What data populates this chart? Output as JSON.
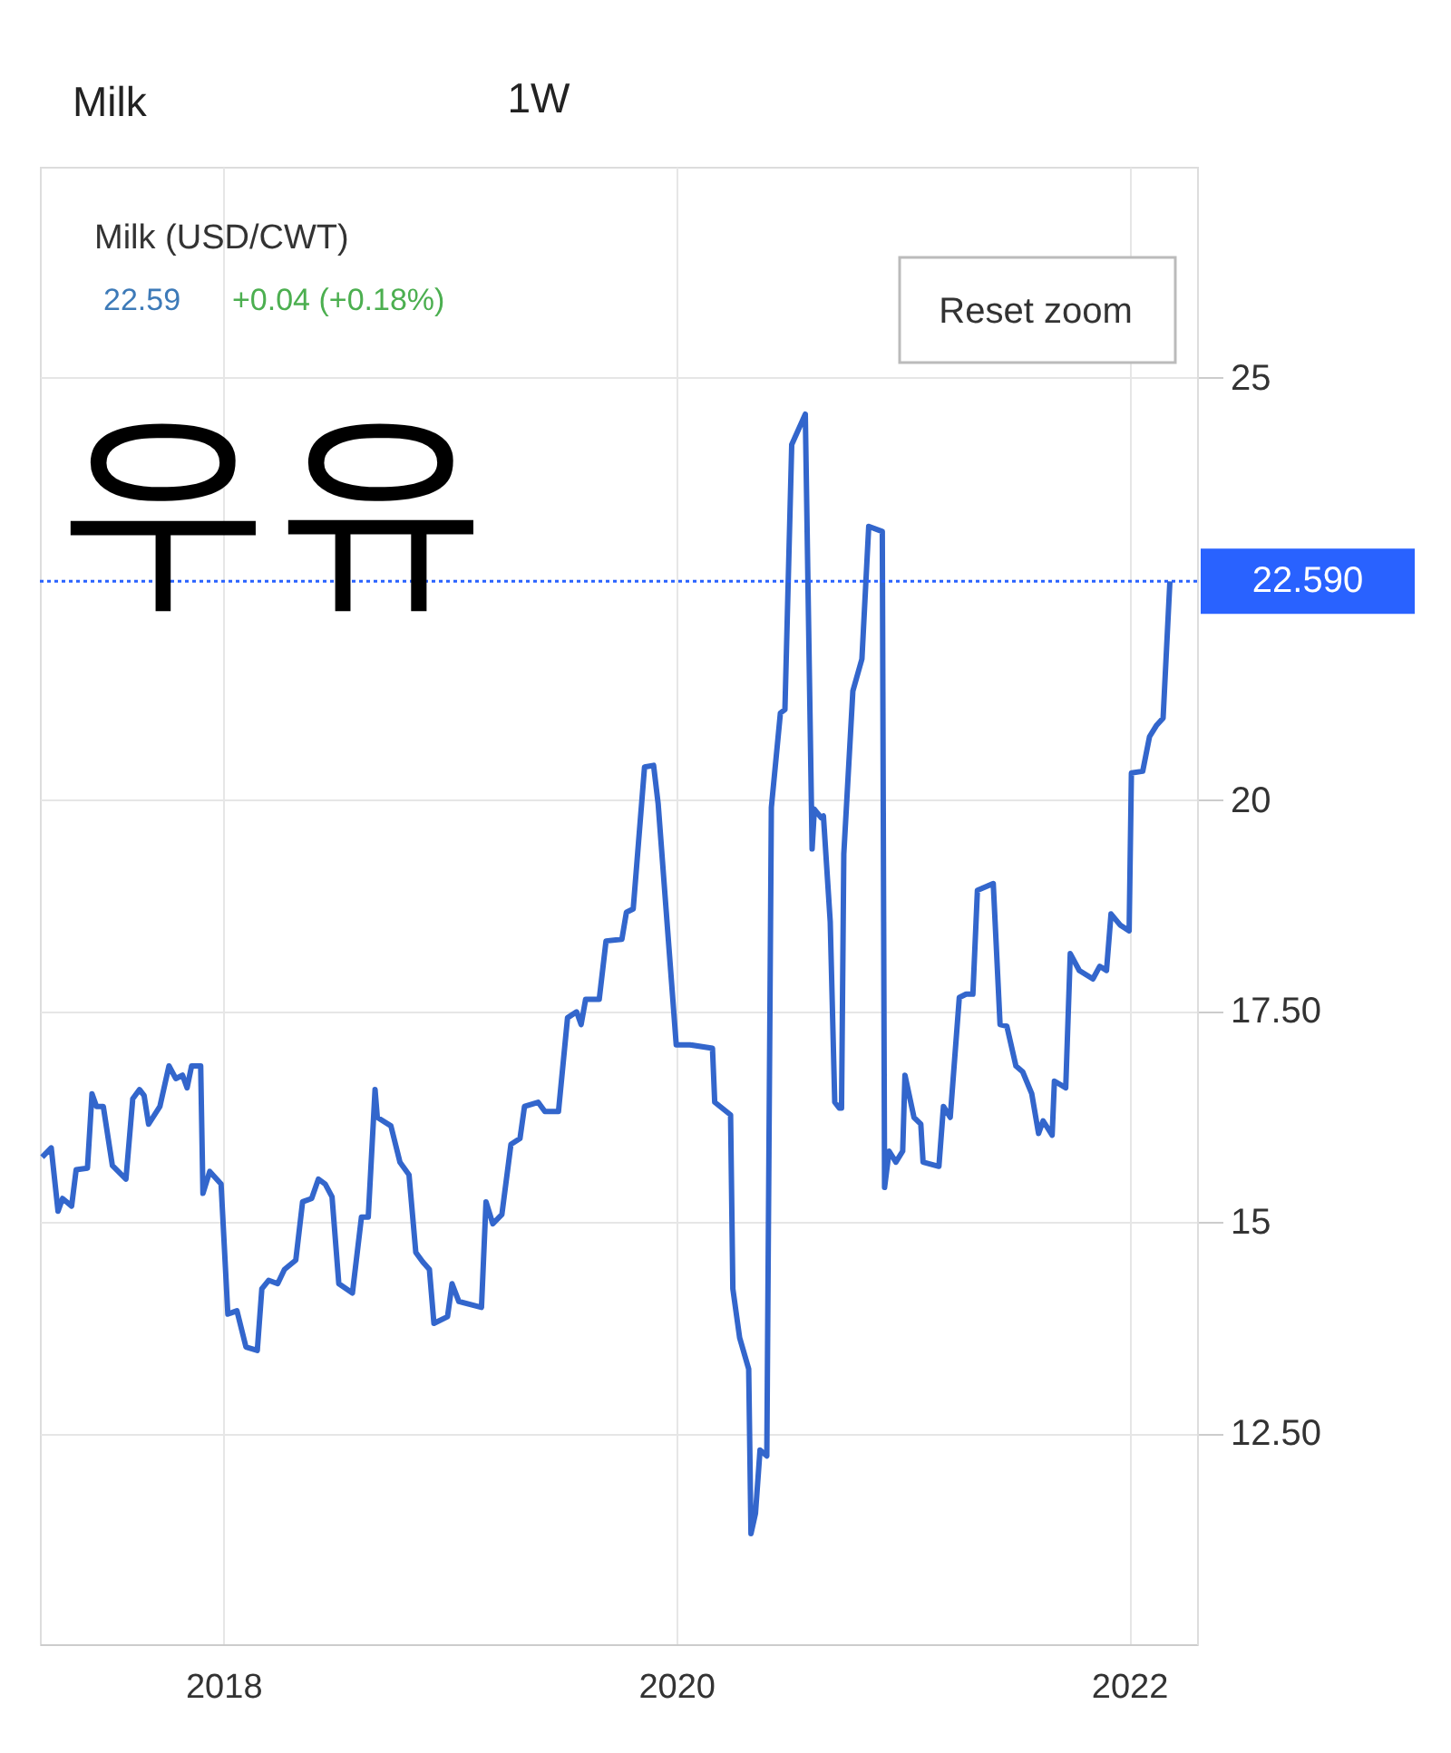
{
  "chart_data": {
    "type": "line",
    "title": "Milk (USD/CWT)",
    "annotations": [
      "22.59",
      "+0.04 (+0.18%)",
      "우유",
      "Milk",
      "1W",
      "Reset zoom"
    ],
    "x": [
      2017.2,
      2017.24,
      2017.27,
      2017.29,
      2017.33,
      2017.35,
      2017.4,
      2017.42,
      2017.44,
      2017.47,
      2017.51,
      2017.57,
      2017.6,
      2017.63,
      2017.65,
      2017.67,
      2017.72,
      2017.76,
      2017.79,
      2017.82,
      2017.84,
      2017.86,
      2017.9,
      2017.91,
      2017.94,
      2017.99,
      2018.02,
      2018.06,
      2018.1,
      2018.15,
      2018.17,
      2018.2,
      2018.24,
      2018.27,
      2018.32,
      2018.35,
      2018.39,
      2018.42,
      2018.45,
      2018.48,
      2018.51,
      2018.57,
      2018.61,
      2018.64,
      2018.67,
      2018.68,
      2018.74,
      2018.78,
      2018.82,
      2018.85,
      2018.88,
      2018.91,
      2018.93,
      2018.99,
      2019.01,
      2019.04,
      2019.14,
      2019.16,
      2019.19,
      2019.23,
      2019.27,
      2019.31,
      2019.33,
      2019.39,
      2019.42,
      2019.48,
      2019.52,
      2019.56,
      2019.58,
      2019.6,
      2019.66,
      2019.69,
      2019.76,
      2019.78,
      2019.81,
      2019.86,
      2019.9,
      2019.92,
      2020.0,
      2020.06,
      2020.16,
      2020.17,
      2020.24,
      2020.25,
      2020.28,
      2020.32,
      2020.33,
      2020.35,
      2020.37,
      2020.4,
      2020.42,
      2020.46,
      2020.48,
      2020.51,
      2020.57,
      2020.6,
      2020.61,
      2020.64,
      2020.65,
      2020.68,
      2020.7,
      2020.72,
      2020.73,
      2020.74,
      2020.78,
      2020.82,
      2020.85,
      2020.91,
      2020.92,
      2020.94,
      2020.97,
      2021.0,
      2021.01,
      2021.05,
      2021.08,
      2021.09,
      2021.16,
      2021.18,
      2021.21,
      2021.25,
      2021.28,
      2021.31,
      2021.33,
      2021.4,
      2021.43,
      2021.46,
      2021.5,
      2021.53,
      2021.57,
      2021.6,
      2021.62,
      2021.66,
      2021.67,
      2021.72,
      2021.74,
      2021.78,
      2021.84,
      2021.87,
      2021.9,
      2021.92,
      2021.96,
      2022.0,
      2022.01,
      2022.06,
      2022.09,
      2022.12,
      2022.15,
      2022.18
    ],
    "series": [
      {
        "color": "#3366cc",
        "values": [
          15.77,
          15.88,
          15.13,
          15.28,
          15.19,
          15.62,
          15.64,
          16.52,
          16.37,
          16.37,
          15.67,
          15.51,
          16.46,
          16.57,
          16.5,
          16.16,
          16.37,
          16.85,
          16.7,
          16.74,
          16.59,
          16.85,
          16.85,
          15.34,
          15.6,
          15.45,
          13.91,
          13.95,
          13.52,
          13.48,
          14.21,
          14.31,
          14.27,
          14.44,
          14.55,
          15.24,
          15.28,
          15.51,
          15.45,
          15.3,
          14.27,
          14.16,
          15.06,
          15.06,
          16.57,
          16.24,
          16.14,
          15.71,
          15.56,
          14.64,
          14.53,
          14.44,
          13.8,
          13.88,
          14.27,
          14.06,
          13.99,
          15.24,
          14.98,
          15.09,
          15.92,
          15.99,
          16.37,
          16.42,
          16.31,
          16.31,
          17.42,
          17.49,
          17.34,
          17.64,
          17.64,
          18.33,
          18.35,
          18.67,
          18.71,
          20.39,
          20.41,
          19.96,
          17.1,
          17.1,
          17.06,
          16.42,
          16.27,
          14.21,
          13.63,
          13.26,
          11.31,
          11.55,
          12.3,
          12.23,
          19.91,
          21.03,
          21.07,
          24.21,
          24.57,
          19.42,
          19.89,
          19.79,
          19.81,
          18.56,
          16.42,
          16.35,
          16.35,
          19.36,
          21.29,
          21.67,
          23.24,
          23.18,
          15.41,
          15.84,
          15.71,
          15.84,
          16.74,
          16.24,
          16.16,
          15.71,
          15.66,
          16.37,
          16.24,
          17.66,
          17.7,
          17.7,
          18.93,
          19.01,
          17.34,
          17.32,
          16.85,
          16.78,
          16.52,
          16.05,
          16.2,
          16.03,
          16.67,
          16.59,
          18.18,
          17.98,
          17.88,
          18.03,
          17.98,
          18.65,
          18.52,
          18.45,
          20.32,
          20.34,
          20.75,
          20.88,
          20.97,
          22.59
        ]
      }
    ],
    "xlim": [
      2017.19,
      2022.3
    ],
    "xticks": [
      2018,
      2020,
      2022
    ],
    "ylim": [
      10,
      27.5
    ],
    "yticks": [
      {
        "value": 12.5,
        "label": "12.50"
      },
      15,
      {
        "value": 17.5,
        "label": "17.50"
      },
      20,
      25
    ],
    "ref_lines": [
      {
        "axis": "y",
        "value": 22.59,
        "label": "22.590",
        "color": "#2962ff",
        "line_style": "dotted"
      }
    ],
    "grid": true,
    "marker": "none",
    "line_style": "solid"
  }
}
